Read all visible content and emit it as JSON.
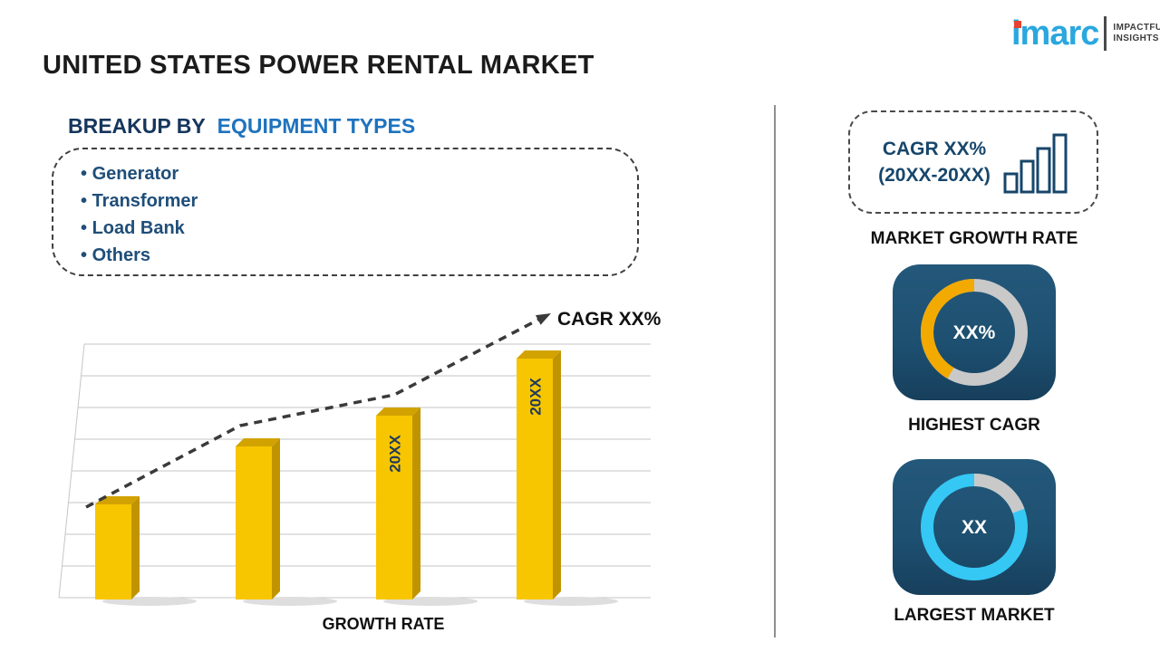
{
  "title": "UNITED STATES POWER RENTAL MARKET",
  "logo": {
    "brand": "imarc",
    "tagline": [
      "IMPACTFUL",
      "INSIGHTS"
    ]
  },
  "breakup": {
    "heading_prefix": "BREAKUP BY",
    "heading_highlight": "EQUIPMENT TYPES",
    "items": [
      "Generator",
      "Transformer",
      "Load Bank",
      "Others"
    ]
  },
  "chart_data": {
    "type": "bar",
    "values": [
      28,
      45,
      54,
      71
    ],
    "ylim": [
      0,
      80
    ],
    "bar_labels": [
      "",
      "",
      "20XX",
      "20XX"
    ],
    "xlabel": "GROWTH RATE",
    "trend_label": "CAGR XX%",
    "grid": true,
    "legend": false,
    "bar_color": "#F7C600",
    "bar_top_color": "#D2A300",
    "bar_side_color": "#C09400",
    "trend_color": "#3a3a3a"
  },
  "right_panel": {
    "cagr_card": {
      "line1": "CAGR XX%",
      "line2": "(20XX-20XX)"
    },
    "market_growth_label": "MARKET GROWTH RATE",
    "highest_cagr": {
      "value": "XX%",
      "label": "HIGHEST CAGR",
      "ring": "#C9C9C9",
      "segment": "#F2A900"
    },
    "largest_market": {
      "value": "XX",
      "label": "LARGEST MARKET",
      "ring": "#35C8F4",
      "segment": "#C9C9C9"
    },
    "tile_color": "#1D4F70"
  },
  "colors": {
    "heading_dark": "#16365C",
    "heading_blue": "#1E73BE",
    "navy": "#17466B",
    "text_dark": "#111111"
  }
}
